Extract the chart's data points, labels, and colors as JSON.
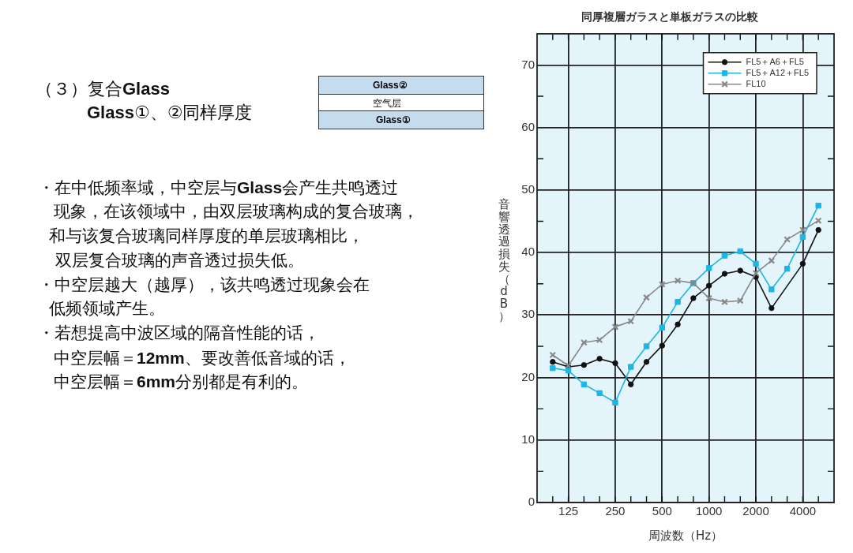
{
  "chart_data": {
    "type": "line",
    "title": "同厚複層ガラスと単板ガラスの比較",
    "xlabel": "周波数（Hz）",
    "ylabel": "音響透過損失（dB）",
    "categories": [
      null,
      "125",
      null,
      null,
      "250",
      null,
      null,
      "500",
      null,
      null,
      "1000",
      null,
      null,
      "2000",
      null,
      null,
      "4000",
      null
    ],
    "series": [
      {
        "name": "FL5＋A6＋FL5",
        "color": "#111111",
        "marker": "circle",
        "values": [
          22.5,
          21.7,
          22,
          23,
          22.3,
          18.9,
          22.5,
          25.1,
          28.5,
          32.7,
          34.7,
          36.6,
          37.1,
          36.1,
          31.1,
          null,
          38.2,
          43.6
        ]
      },
      {
        "name": "FL5＋A12＋FL5",
        "color": "#1ab6e6",
        "marker": "square",
        "values": [
          21.5,
          21.1,
          18.9,
          17.5,
          16.0,
          21.7,
          25.0,
          28.0,
          32.1,
          35.1,
          37.5,
          39.5,
          40.2,
          38.2,
          34.1,
          37.4,
          42.5,
          47.5
        ]
      },
      {
        "name": "FL10",
        "color": "#888888",
        "marker": "cross",
        "values": [
          23.6,
          21.9,
          25.6,
          26,
          28.1,
          29,
          32.8,
          34.9,
          35.5,
          35.1,
          32.7,
          32.1,
          32.3,
          36.7,
          38.7,
          42.1,
          43.6,
          45.1
        ]
      }
    ],
    "ylim": [
      0,
      75
    ],
    "yticks": [
      0,
      {
        "value": 5,
        "label": null
      },
      10,
      {
        "value": 15,
        "label": null
      },
      20,
      {
        "value": 25,
        "label": null
      },
      30,
      {
        "value": 35,
        "label": null
      },
      40,
      {
        "value": 45,
        "label": null
      },
      50,
      {
        "value": 55,
        "label": null
      },
      60,
      {
        "value": 65,
        "label": null
      },
      70
    ],
    "grid": true,
    "legend": "top right",
    "line_style": "solid",
    "annotations": [
      "（３）复合Glass",
      "Glass①、②同样厚度",
      "Glass②",
      "空气层",
      "Glass①",
      "・在中低频率域，中空层与Glass会产生共鸣透过",
      "现象，在该领域中，由双层玻璃构成的复合玻璃，",
      "和与该复合玻璃同样厚度的单层玻璃相比，",
      "双层复合玻璃的声音透过损失低。",
      "・中空层越大（越厚），该共鸣透过现象会在",
      "低频领域产生。",
      "・若想提高中波区域的隔音性能的话，",
      "中空层幅＝12mm、要改善低音域的话，",
      "中空层幅＝6mm分别都是有利的。"
    ]
  }
}
